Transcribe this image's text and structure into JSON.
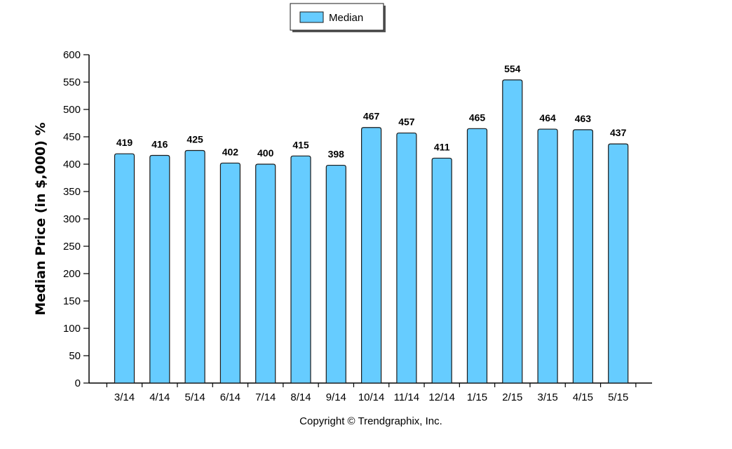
{
  "chart_data": {
    "type": "bar",
    "categories": [
      "3/14",
      "4/14",
      "5/14",
      "6/14",
      "7/14",
      "8/14",
      "9/14",
      "10/14",
      "11/14",
      "12/14",
      "1/15",
      "2/15",
      "3/15",
      "4/15",
      "5/15"
    ],
    "series": [
      {
        "name": "Median",
        "values": [
          419,
          416,
          425,
          402,
          400,
          415,
          398,
          467,
          457,
          411,
          465,
          554,
          464,
          463,
          437
        ]
      }
    ],
    "ylabel": "Median Price (in $,000) %",
    "xlabel": "",
    "ylim": [
      0,
      600
    ],
    "yticks": [
      0,
      50,
      100,
      150,
      200,
      250,
      300,
      350,
      400,
      450,
      500,
      550,
      600
    ],
    "grid": false,
    "legend_position": "top-center",
    "colors": {
      "bar_fill": "#66CCFF",
      "bar_stroke": "#1a1a1a"
    }
  },
  "footer": {
    "copyright": "Copyright © Trendgraphix, Inc."
  }
}
